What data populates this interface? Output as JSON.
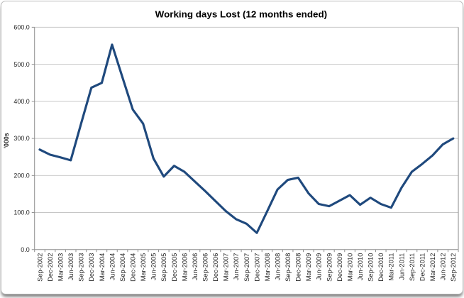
{
  "chart_data": {
    "type": "line",
    "title": "Working days Lost (12 months ended)",
    "xlabel": "",
    "ylabel": "'000s",
    "ylim": [
      0,
      600
    ],
    "y_tick_step": 100,
    "y_tick_labels": [
      "0.0",
      "100.0",
      "200.0",
      "300.0",
      "400.0",
      "500.0",
      "600.0"
    ],
    "grid": "horizontal",
    "legend": "none",
    "line_color": "#1F497D",
    "gridline_color": "#C6C6C6",
    "axis_color": "#8E8E8E",
    "categories": [
      "Sep-2002",
      "Dec-2002",
      "Mar-2003",
      "Jun-2003",
      "Sep-2003",
      "Dec-2003",
      "Mar-2004",
      "Jun-2004",
      "Sep-2004",
      "Dec-2004",
      "Mar-2005",
      "Jun-2005",
      "Sep-2005",
      "Dec-2005",
      "Mar-2006",
      "Jun-2006",
      "Sep-2006",
      "Dec-2006",
      "Mar-2007",
      "Jun-2007",
      "Sep-2007",
      "Dec-2007",
      "Mar-2008",
      "Jun-2008",
      "Sep-2008",
      "Dec-2008",
      "Mar-2009",
      "Jun-2009",
      "Sep-2009",
      "Dec-2009",
      "Mar-2010",
      "Jun-2010",
      "Sep-2010",
      "Dec-2010",
      "Mar-2011",
      "Jun-2011",
      "Sep-2011",
      "Dec-2011",
      "Mar-2012",
      "Jun-2012",
      "Sep-2012"
    ],
    "values": [
      270,
      256,
      249,
      241,
      340,
      437,
      450,
      553,
      465,
      378,
      340,
      246,
      197,
      226,
      210,
      184,
      158,
      131,
      104,
      82,
      70,
      45,
      103,
      162,
      188,
      194,
      152,
      123,
      117,
      132,
      147,
      121,
      140,
      123,
      113,
      167,
      210,
      231,
      254,
      284,
      300
    ]
  }
}
